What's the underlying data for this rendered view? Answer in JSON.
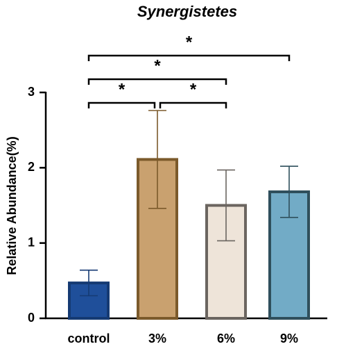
{
  "chart_data": {
    "type": "bar",
    "title": "Synergistetes",
    "y_label": "Relative Abundance(%)",
    "categories": [
      "control",
      "3%",
      "6%",
      "9%"
    ],
    "values": [
      0.47,
      2.11,
      1.5,
      1.68
    ],
    "errors": [
      0.17,
      0.65,
      0.47,
      0.34
    ],
    "colors": [
      "#1f4f9a",
      "#c9a16f",
      "#eee4d9",
      "#72abc6"
    ],
    "edge_colors": [
      "#153a73",
      "#7b5a2b",
      "#6b6560",
      "#2f4f5c"
    ],
    "ylim": [
      0,
      3
    ],
    "yticks": [
      0,
      1,
      2,
      3
    ],
    "annotations": [
      "*",
      "*",
      "*",
      "*"
    ]
  }
}
